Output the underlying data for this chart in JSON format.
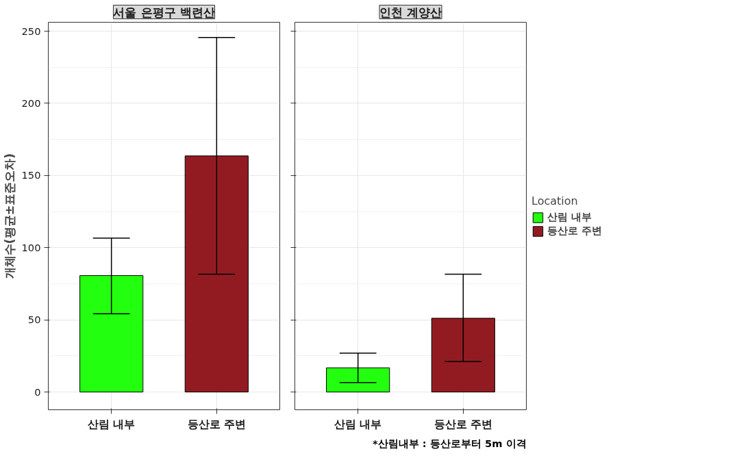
{
  "chart_data": [
    {
      "type": "bar",
      "title": "서울 은평구 백련산",
      "ylabel": "개체수(평균±표준오차)",
      "categories": [
        "산림 내부",
        "등산로 주변"
      ],
      "series": [
        {
          "color": "#22ff0f",
          "values": [
            80.7,
            null
          ],
          "errors": [
            [
              54.2,
              106.7
            ],
            null
          ]
        },
        {
          "color": "#921b22",
          "values": [
            null,
            163.6
          ],
          "errors": [
            null,
            [
              81.6,
              245.6
            ]
          ]
        }
      ],
      "ylim": [
        -12.3,
        256.2
      ],
      "yticks": [
        0,
        50,
        100,
        150,
        200,
        250
      ],
      "grid": true
    },
    {
      "type": "bar",
      "title": "인천 계양산",
      "categories": [
        "산림 내부",
        "등산로 주변"
      ],
      "series": [
        {
          "name": "산림 내부",
          "color": "#22ff0f",
          "values": [
            16.8,
            null
          ],
          "errors": [
            [
              6.6,
              26.9
            ],
            null
          ]
        },
        {
          "name": "등산로 주변",
          "color": "#921b22",
          "values": [
            null,
            51.1
          ],
          "errors": [
            null,
            [
              21.2,
              81.6
            ]
          ]
        }
      ],
      "ylim": [
        -12.3,
        256.2
      ],
      "yticks": [
        0,
        50,
        100,
        150,
        200,
        250
      ],
      "grid": true,
      "tick_labels": "x",
      "legend": "right",
      "legend_title": "Location",
      "annotations": [
        "*산림내부 : 등산로부터 5m 이격"
      ]
    }
  ]
}
